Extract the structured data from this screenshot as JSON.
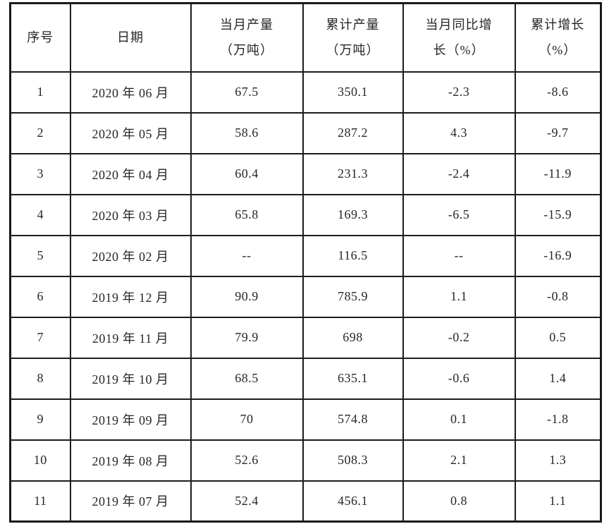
{
  "table": {
    "headers": [
      {
        "name": "serial",
        "lines": [
          "序号"
        ]
      },
      {
        "name": "date",
        "lines": [
          "日期"
        ]
      },
      {
        "name": "monthly-output",
        "lines": [
          "当月产量",
          "（万吨）"
        ]
      },
      {
        "name": "cumulative-output",
        "lines": [
          "累计产量",
          "（万吨）"
        ]
      },
      {
        "name": "monthly-yoy-growth",
        "lines": [
          "当月同比增",
          "长（%）"
        ]
      },
      {
        "name": "cumulative-growth",
        "lines": [
          "累计增长",
          "（%）"
        ]
      }
    ],
    "rows": [
      [
        "1",
        "2020 年 06 月",
        "67.5",
        "350.1",
        "-2.3",
        "-8.6"
      ],
      [
        "2",
        "2020 年 05 月",
        "58.6",
        "287.2",
        "4.3",
        "-9.7"
      ],
      [
        "3",
        "2020 年 04 月",
        "60.4",
        "231.3",
        "-2.4",
        "-11.9"
      ],
      [
        "4",
        "2020 年 03 月",
        "65.8",
        "169.3",
        "-6.5",
        "-15.9"
      ],
      [
        "5",
        "2020 年 02 月",
        "--",
        "116.5",
        "--",
        "-16.9"
      ],
      [
        "6",
        "2019 年 12 月",
        "90.9",
        "785.9",
        "1.1",
        "-0.8"
      ],
      [
        "7",
        "2019 年 11 月",
        "79.9",
        "698",
        "-0.2",
        "0.5"
      ],
      [
        "8",
        "2019 年 10 月",
        "68.5",
        "635.1",
        "-0.6",
        "1.4"
      ],
      [
        "9",
        "2019 年 09 月",
        "70",
        "574.8",
        "0.1",
        "-1.8"
      ],
      [
        "10",
        "2019 年 08 月",
        "52.6",
        "508.3",
        "2.1",
        "1.3"
      ],
      [
        "11",
        "2019 年 07 月",
        "52.4",
        "456.1",
        "0.8",
        "1.1"
      ]
    ],
    "colors": {
      "border": "#1c1c1c",
      "text": "#262626",
      "background": "#ffffff"
    }
  }
}
